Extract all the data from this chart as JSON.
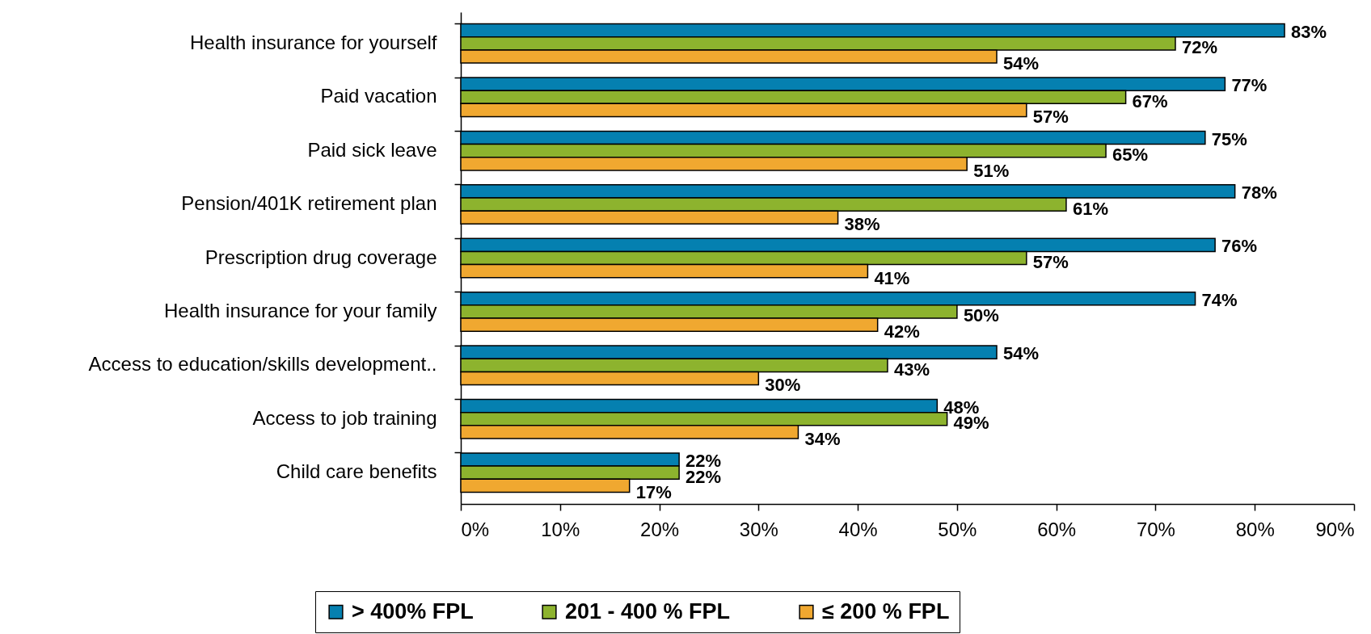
{
  "chart_data": {
    "type": "bar",
    "orientation": "horizontal",
    "categories": [
      "Health insurance for yourself",
      "Paid vacation",
      "Paid sick leave",
      "Pension/401K retirement plan",
      "Prescription drug coverage",
      "Health insurance for your family",
      "Access to education/skills development..",
      "Access to job training",
      "Child care benefits"
    ],
    "series": [
      {
        "name": "> 400% FPL",
        "color": "#0580b0",
        "values": [
          83,
          77,
          75,
          78,
          76,
          74,
          54,
          48,
          22
        ],
        "value_labels": [
          "83%",
          "77%",
          "75%",
          "78%",
          "76%",
          "74%",
          "54%",
          "48%",
          "22%"
        ]
      },
      {
        "name": "201 - 400 % FPL",
        "color": "#8db32e",
        "values": [
          72,
          67,
          65,
          61,
          57,
          50,
          43,
          49,
          22
        ],
        "value_labels": [
          "72%",
          "67%",
          "65%",
          "61%",
          "57%",
          "50%",
          "43%",
          "49%",
          "22%"
        ]
      },
      {
        "name": "≤ 200 % FPL",
        "color": "#f0a830",
        "values": [
          54,
          57,
          51,
          38,
          41,
          42,
          30,
          34,
          17
        ],
        "value_labels": [
          "54%",
          "57%",
          "51%",
          "38%",
          "41%",
          "42%",
          "30%",
          "34%",
          "17%"
        ]
      }
    ],
    "xlim": [
      0,
      90
    ],
    "xticks": [
      {
        "value": 0,
        "label": "0%"
      },
      {
        "value": 10,
        "label": "10%"
      },
      {
        "value": 20,
        "label": "20%"
      },
      {
        "value": 30,
        "label": "30%"
      },
      {
        "value": 40,
        "label": "40%"
      },
      {
        "value": 50,
        "label": "50%"
      },
      {
        "value": 60,
        "label": "60%"
      },
      {
        "value": 70,
        "label": "70%"
      },
      {
        "value": 80,
        "label": "80%"
      },
      {
        "value": 90,
        "label": "90%"
      }
    ],
    "legend": "bottom"
  }
}
